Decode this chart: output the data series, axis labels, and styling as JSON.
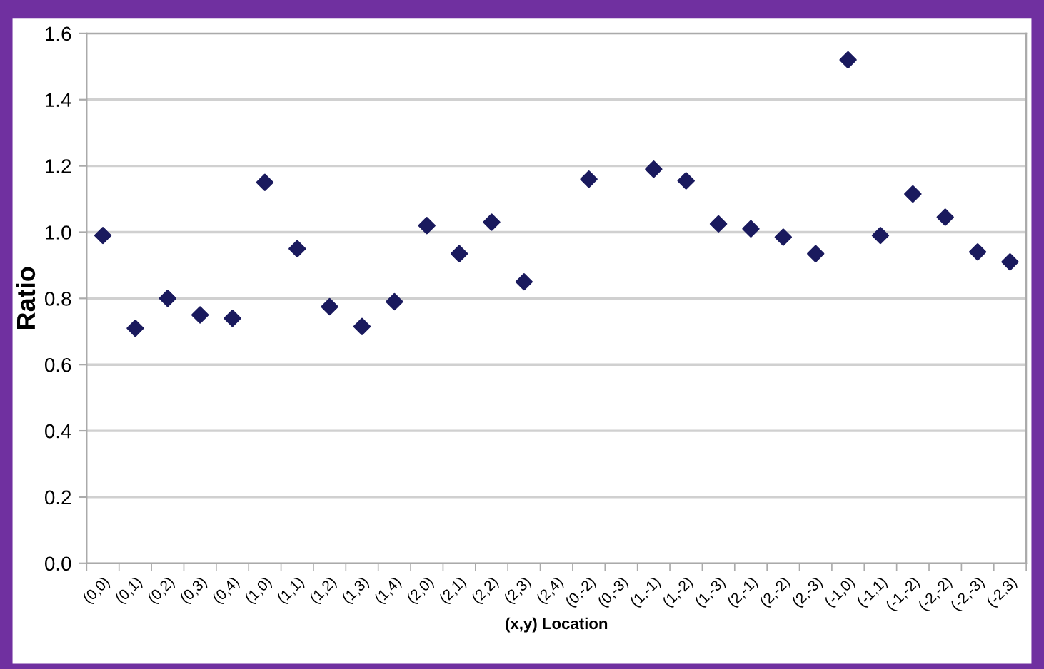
{
  "chart_data": {
    "type": "scatter",
    "xlabel": "(x,y) Location",
    "ylabel": "Ratio",
    "categories": [
      "(0,0)",
      "(0,1)",
      "(0,2)",
      "(0,3)",
      "(0,4)",
      "(1,0)",
      "(1,1)",
      "(1,2)",
      "(1,3)",
      "(1,4)",
      "(2,0)",
      "(2,1)",
      "(2,2)",
      "(2,3)",
      "(2,4)",
      "(0,-2)",
      "(0,-3)",
      "(1,-1)",
      "(1,-2)",
      "(1,-3)",
      "(2,-1)",
      "(2,-2)",
      "(2,-3)",
      "(-1,0)",
      "(-1,1)",
      "(-1,-2)",
      "(-2,-2)",
      "(-2,-3)",
      "(-2,3)"
    ],
    "series": [
      {
        "color": "#1a1a5e",
        "values": [
          0.99,
          0.71,
          0.8,
          0.75,
          0.74,
          1.15,
          0.95,
          0.775,
          0.715,
          0.79,
          1.02,
          0.935,
          1.03,
          0.85,
          null,
          1.16,
          null,
          1.19,
          1.155,
          1.025,
          1.01,
          0.985,
          0.935,
          1.52,
          0.99,
          1.115,
          1.045,
          0.94,
          0.91
        ]
      }
    ],
    "ylim": [
      0,
      1.6
    ],
    "yticks": [
      {
        "value": 0,
        "label": "0.0"
      },
      {
        "value": 0.2,
        "label": "0.2"
      },
      {
        "value": 0.4,
        "label": "0.4"
      },
      {
        "value": 0.6,
        "label": "0.6"
      },
      {
        "value": 0.8,
        "label": "0.8"
      },
      {
        "value": 1.0,
        "label": "1.0"
      },
      {
        "value": 1.2,
        "label": "1.2"
      },
      {
        "value": 1.4,
        "label": "1.4"
      },
      {
        "value": 1.6,
        "label": "1.6"
      }
    ],
    "grid": "y",
    "marker": "diamond",
    "legend": false
  }
}
